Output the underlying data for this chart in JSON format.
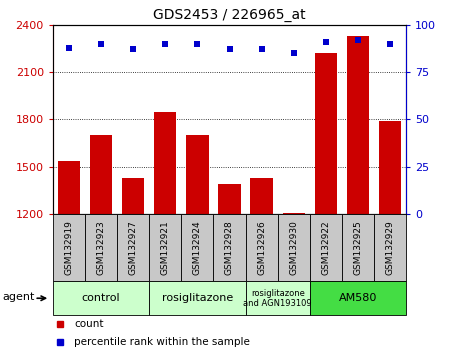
{
  "title": "GDS2453 / 226965_at",
  "samples": [
    "GSM132919",
    "GSM132923",
    "GSM132927",
    "GSM132921",
    "GSM132924",
    "GSM132928",
    "GSM132926",
    "GSM132930",
    "GSM132922",
    "GSM132925",
    "GSM132929"
  ],
  "counts": [
    1540,
    1700,
    1430,
    1850,
    1700,
    1390,
    1430,
    1210,
    2220,
    2330,
    1790
  ],
  "percentiles": [
    88,
    90,
    87,
    90,
    90,
    87,
    87,
    85,
    91,
    92,
    90
  ],
  "bar_color": "#cc0000",
  "dot_color": "#0000cc",
  "ylim_left": [
    1200,
    2400
  ],
  "ylim_right": [
    0,
    100
  ],
  "yticks_left": [
    1200,
    1500,
    1800,
    2100,
    2400
  ],
  "yticks_right": [
    0,
    25,
    50,
    75,
    100
  ],
  "groups": [
    {
      "label": "control",
      "start": 0,
      "end": 3,
      "color": "#ccffcc",
      "fontsize": 8
    },
    {
      "label": "rosiglitazone",
      "start": 3,
      "end": 6,
      "color": "#ccffcc",
      "fontsize": 8
    },
    {
      "label": "rosiglitazone\nand AGN193109",
      "start": 6,
      "end": 8,
      "color": "#ccffcc",
      "fontsize": 6
    },
    {
      "label": "AM580",
      "start": 8,
      "end": 11,
      "color": "#44dd44",
      "fontsize": 8
    }
  ],
  "legend_count_label": "count",
  "legend_pct_label": "percentile rank within the sample",
  "agent_label": "agent",
  "tick_color_left": "#cc0000",
  "tick_color_right": "#0000cc",
  "xtick_bg_color": "#c8c8c8",
  "bar_width": 0.7
}
